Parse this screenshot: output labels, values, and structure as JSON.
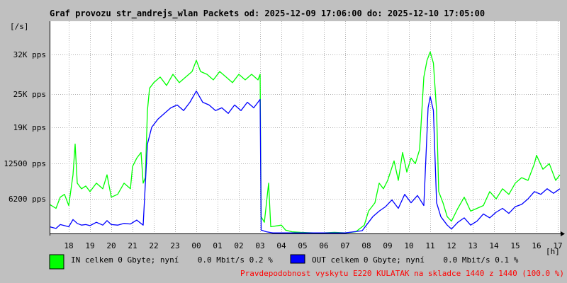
{
  "chart_data": {
    "type": "area",
    "title": "Graf provozu str_andrejs_wlan Packets od: 2025-12-09 17:06:00 do: 2025-12-10 17:05:00",
    "ylabel": "[/s]",
    "xlabel": "[h]",
    "ylim": [
      0,
      38000
    ],
    "yticks": [
      {
        "value": 6200,
        "label": "6200 pps"
      },
      {
        "value": 12500,
        "label": "12500 pps"
      },
      {
        "value": 19000,
        "label": "19K pps"
      },
      {
        "value": 25000,
        "label": "25K pps"
      },
      {
        "value": 32000,
        "label": "32K pps"
      }
    ],
    "xlim": [
      17.1,
      41.1
    ],
    "xticks": [
      {
        "value": 18,
        "label": "18"
      },
      {
        "value": 19,
        "label": "19"
      },
      {
        "value": 20,
        "label": "20"
      },
      {
        "value": 21,
        "label": "21"
      },
      {
        "value": 22,
        "label": "22"
      },
      {
        "value": 23,
        "label": "23"
      },
      {
        "value": 24,
        "label": "00"
      },
      {
        "value": 25,
        "label": "01"
      },
      {
        "value": 26,
        "label": "02"
      },
      {
        "value": 27,
        "label": "03"
      },
      {
        "value": 28,
        "label": "04"
      },
      {
        "value": 29,
        "label": "05"
      },
      {
        "value": 30,
        "label": "06"
      },
      {
        "value": 31,
        "label": "07"
      },
      {
        "value": 32,
        "label": "08"
      },
      {
        "value": 33,
        "label": "09"
      },
      {
        "value": 34,
        "label": "10"
      },
      {
        "value": 35,
        "label": "11"
      },
      {
        "value": 36,
        "label": "12"
      },
      {
        "value": 37,
        "label": "13"
      },
      {
        "value": 38,
        "label": "14"
      },
      {
        "value": 39,
        "label": "15"
      },
      {
        "value": 40,
        "label": "16"
      },
      {
        "value": 41,
        "label": "17"
      }
    ],
    "grid": true,
    "legend_position": "bottom-left",
    "series": [
      {
        "label": "IN celkem 0 Gbyte; nyní    0.0 Mbit/s 0.2 %",
        "color": "#00ff00",
        "points": [
          [
            17.1,
            5200
          ],
          [
            17.4,
            4500
          ],
          [
            17.6,
            6500
          ],
          [
            17.8,
            7000
          ],
          [
            18.0,
            5000
          ],
          [
            18.2,
            10500
          ],
          [
            18.3,
            16000
          ],
          [
            18.4,
            9000
          ],
          [
            18.6,
            8000
          ],
          [
            18.8,
            8500
          ],
          [
            19.0,
            7500
          ],
          [
            19.3,
            9000
          ],
          [
            19.6,
            8000
          ],
          [
            19.8,
            10500
          ],
          [
            20.0,
            6500
          ],
          [
            20.3,
            7000
          ],
          [
            20.6,
            9000
          ],
          [
            20.9,
            8000
          ],
          [
            21.0,
            12000
          ],
          [
            21.2,
            13500
          ],
          [
            21.4,
            14500
          ],
          [
            21.5,
            9000
          ],
          [
            21.6,
            10000
          ],
          [
            21.7,
            22000
          ],
          [
            21.8,
            26000
          ],
          [
            22.0,
            27000
          ],
          [
            22.3,
            28000
          ],
          [
            22.6,
            26500
          ],
          [
            22.9,
            28500
          ],
          [
            23.2,
            27000
          ],
          [
            23.5,
            28000
          ],
          [
            23.8,
            29000
          ],
          [
            24.0,
            31000
          ],
          [
            24.2,
            29000
          ],
          [
            24.5,
            28500
          ],
          [
            24.8,
            27500
          ],
          [
            25.1,
            29000
          ],
          [
            25.4,
            28000
          ],
          [
            25.7,
            27000
          ],
          [
            26.0,
            28500
          ],
          [
            26.3,
            27500
          ],
          [
            26.6,
            28500
          ],
          [
            26.9,
            27500
          ],
          [
            27.0,
            28500
          ],
          [
            27.05,
            3000
          ],
          [
            27.2,
            2000
          ],
          [
            27.4,
            9000
          ],
          [
            27.5,
            1200
          ],
          [
            28.0,
            1500
          ],
          [
            28.2,
            600
          ],
          [
            28.5,
            300
          ],
          [
            28.9,
            200
          ],
          [
            29.5,
            100
          ],
          [
            30.0,
            100
          ],
          [
            30.5,
            200
          ],
          [
            31.0,
            100
          ],
          [
            31.5,
            300
          ],
          [
            31.9,
            1500
          ],
          [
            32.1,
            4000
          ],
          [
            32.4,
            5500
          ],
          [
            32.6,
            9000
          ],
          [
            32.8,
            8000
          ],
          [
            33.0,
            9500
          ],
          [
            33.3,
            13000
          ],
          [
            33.5,
            9500
          ],
          [
            33.7,
            14500
          ],
          [
            33.9,
            11000
          ],
          [
            34.1,
            13500
          ],
          [
            34.3,
            12500
          ],
          [
            34.5,
            15000
          ],
          [
            34.7,
            28000
          ],
          [
            34.85,
            31000
          ],
          [
            35.0,
            32500
          ],
          [
            35.15,
            30500
          ],
          [
            35.3,
            22000
          ],
          [
            35.4,
            7500
          ],
          [
            35.6,
            5500
          ],
          [
            35.8,
            3000
          ],
          [
            36.0,
            2200
          ],
          [
            36.3,
            4500
          ],
          [
            36.6,
            6500
          ],
          [
            36.9,
            4000
          ],
          [
            37.2,
            4500
          ],
          [
            37.5,
            5000
          ],
          [
            37.8,
            7500
          ],
          [
            38.1,
            6200
          ],
          [
            38.4,
            8000
          ],
          [
            38.7,
            7000
          ],
          [
            39.0,
            9000
          ],
          [
            39.3,
            10000
          ],
          [
            39.6,
            9500
          ],
          [
            39.9,
            12500
          ],
          [
            40.0,
            14000
          ],
          [
            40.3,
            11500
          ],
          [
            40.6,
            12500
          ],
          [
            40.9,
            9500
          ],
          [
            41.1,
            10500
          ]
        ]
      },
      {
        "label": "OUT celkem 0 Gbyte; nyní    0.0 Mbit/s 0.1 %",
        "color": "#0000ff",
        "points": [
          [
            17.1,
            1200
          ],
          [
            17.4,
            900
          ],
          [
            17.6,
            1600
          ],
          [
            17.8,
            1400
          ],
          [
            18.0,
            1200
          ],
          [
            18.2,
            2500
          ],
          [
            18.4,
            1800
          ],
          [
            18.6,
            1500
          ],
          [
            18.8,
            1600
          ],
          [
            19.0,
            1400
          ],
          [
            19.3,
            2000
          ],
          [
            19.6,
            1500
          ],
          [
            19.8,
            2300
          ],
          [
            20.0,
            1600
          ],
          [
            20.3,
            1500
          ],
          [
            20.6,
            1800
          ],
          [
            20.9,
            1700
          ],
          [
            21.2,
            2400
          ],
          [
            21.5,
            1500
          ],
          [
            21.7,
            16000
          ],
          [
            21.9,
            19000
          ],
          [
            22.2,
            20500
          ],
          [
            22.5,
            21500
          ],
          [
            22.8,
            22500
          ],
          [
            23.1,
            23000
          ],
          [
            23.4,
            22000
          ],
          [
            23.7,
            23500
          ],
          [
            24.0,
            25500
          ],
          [
            24.3,
            23500
          ],
          [
            24.6,
            23000
          ],
          [
            24.9,
            22000
          ],
          [
            25.2,
            22500
          ],
          [
            25.5,
            21500
          ],
          [
            25.8,
            23000
          ],
          [
            26.1,
            22000
          ],
          [
            26.4,
            23500
          ],
          [
            26.7,
            22500
          ],
          [
            27.0,
            24000
          ],
          [
            27.05,
            600
          ],
          [
            27.3,
            300
          ],
          [
            27.6,
            100
          ],
          [
            28.0,
            100
          ],
          [
            29.0,
            100
          ],
          [
            30.0,
            100
          ],
          [
            31.0,
            100
          ],
          [
            31.8,
            500
          ],
          [
            32.0,
            1500
          ],
          [
            32.3,
            3000
          ],
          [
            32.6,
            4000
          ],
          [
            32.9,
            4800
          ],
          [
            33.2,
            6000
          ],
          [
            33.5,
            4500
          ],
          [
            33.8,
            7000
          ],
          [
            34.1,
            5500
          ],
          [
            34.4,
            6800
          ],
          [
            34.7,
            5000
          ],
          [
            34.9,
            22500
          ],
          [
            35.0,
            24500
          ],
          [
            35.15,
            22000
          ],
          [
            35.3,
            5500
          ],
          [
            35.5,
            3000
          ],
          [
            35.8,
            1500
          ],
          [
            36.0,
            800
          ],
          [
            36.3,
            2000
          ],
          [
            36.6,
            2800
          ],
          [
            36.9,
            1500
          ],
          [
            37.2,
            2200
          ],
          [
            37.5,
            3500
          ],
          [
            37.8,
            2800
          ],
          [
            38.1,
            3800
          ],
          [
            38.4,
            4500
          ],
          [
            38.7,
            3600
          ],
          [
            39.0,
            4800
          ],
          [
            39.3,
            5200
          ],
          [
            39.6,
            6200
          ],
          [
            39.9,
            7500
          ],
          [
            40.2,
            7000
          ],
          [
            40.5,
            8000
          ],
          [
            40.8,
            7200
          ],
          [
            41.1,
            8000
          ]
        ]
      }
    ]
  },
  "footer": {
    "warning_text": "Pravdepodobnost vyskytu E220 KULATAK na skladce 1440 z 1440 (100.0 %)",
    "warning_color": "#ff0000"
  }
}
